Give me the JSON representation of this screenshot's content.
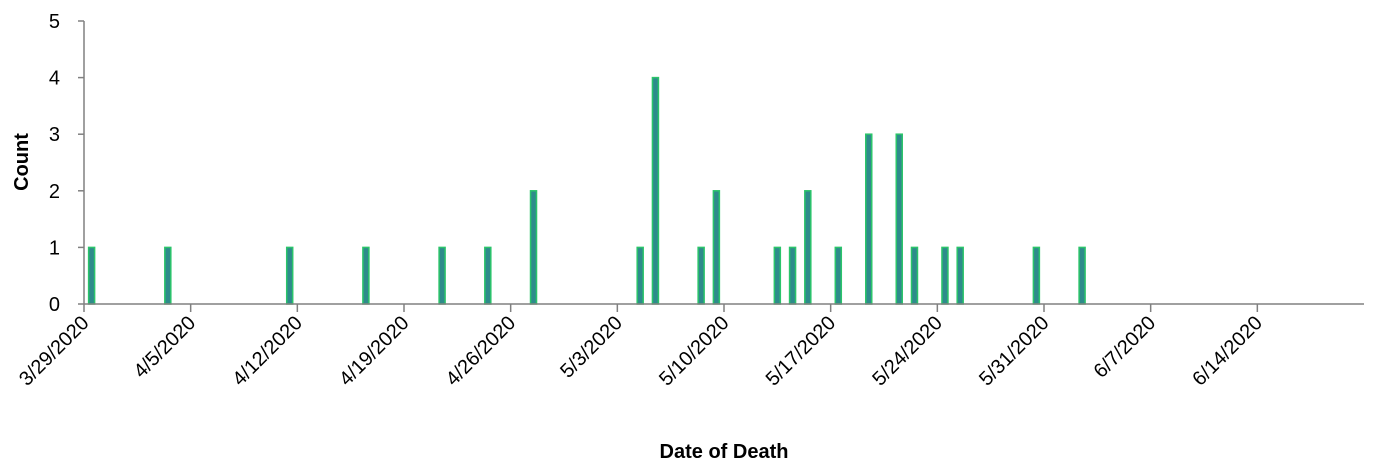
{
  "chart_data": {
    "type": "bar",
    "xlabel": "Date of Death",
    "ylabel": "Count",
    "ylim": [
      0,
      5
    ],
    "yticks": [
      "0",
      "1",
      "2",
      "3",
      "4",
      "5"
    ],
    "xlim": [
      "3/29/2020",
      "6/21/2020"
    ],
    "xticks": [
      "3/29/2020",
      "4/5/2020",
      "4/12/2020",
      "4/19/2020",
      "4/26/2020",
      "5/3/2020",
      "5/10/2020",
      "5/17/2020",
      "5/24/2020",
      "5/31/2020",
      "6/7/2020",
      "6/14/2020"
    ],
    "grid": false,
    "colors": {
      "bar_fill": "#2e8b8b",
      "bar_edge": "#2bc46a",
      "axis": "#808080"
    },
    "series": [
      {
        "x": [
          "3/29/2020",
          "4/3/2020",
          "4/11/2020",
          "4/16/2020",
          "4/21/2020",
          "4/24/2020",
          "4/27/2020",
          "5/4/2020",
          "5/5/2020",
          "5/8/2020",
          "5/9/2020",
          "5/13/2020",
          "5/14/2020",
          "5/15/2020",
          "5/17/2020",
          "5/19/2020",
          "5/21/2020",
          "5/22/2020",
          "5/24/2020",
          "5/25/2020",
          "5/30/2020",
          "6/2/2020"
        ],
        "values": [
          1,
          1,
          1,
          1,
          1,
          1,
          2,
          1,
          4,
          1,
          2,
          1,
          1,
          2,
          1,
          3,
          3,
          1,
          1,
          1,
          1,
          1
        ]
      }
    ]
  }
}
